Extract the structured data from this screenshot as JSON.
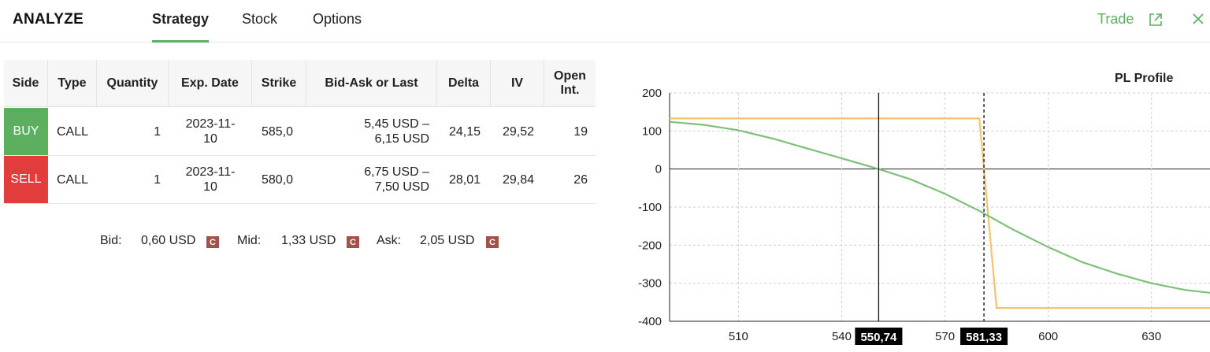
{
  "header": {
    "app_title": "ANALYZE",
    "tabs": [
      {
        "label": "Strategy",
        "active": true
      },
      {
        "label": "Stock",
        "active": false
      },
      {
        "label": "Options",
        "active": false
      }
    ],
    "trade_label": "Trade",
    "accent_color": "#5fae66"
  },
  "table": {
    "columns": [
      "Side",
      "Type",
      "Quantity",
      "Exp. Date",
      "Strike",
      "Bid-Ask or Last",
      "Delta",
      "IV",
      "Open Int."
    ],
    "rows": [
      {
        "side": "BUY",
        "type": "CALL",
        "quantity": "1",
        "exp_line1": "2023-11-",
        "exp_line2": "10",
        "strike": "585,0",
        "bidask_line1": "5,45 USD –",
        "bidask_line2": "6,15 USD",
        "delta": "24,15",
        "iv": "29,52",
        "open_int": "19",
        "color": "#5caf5f"
      },
      {
        "side": "SELL",
        "type": "CALL",
        "quantity": "1",
        "exp_line1": "2023-11-",
        "exp_line2": "10",
        "strike": "580,0",
        "bidask_line1": "6,75 USD –",
        "bidask_line2": "7,50 USD",
        "delta": "28,01",
        "iv": "29,84",
        "open_int": "26",
        "color": "#e23c3c"
      }
    ]
  },
  "summary": {
    "bid_label": "Bid:",
    "bid_value": "0,60 USD",
    "mid_label": "Mid:",
    "mid_value": "1,33 USD",
    "ask_label": "Ask:",
    "ask_value": "2,05 USD",
    "badge": "C"
  },
  "chart_data": {
    "type": "line",
    "title": "PL Profile",
    "xlabel": "",
    "ylabel": "",
    "xlim": [
      490,
      647
    ],
    "ylim": [
      -400,
      200
    ],
    "x_ticks": [
      510,
      540,
      570,
      600,
      630
    ],
    "y_ticks": [
      200,
      100,
      0,
      -100,
      -200,
      -300,
      -400
    ],
    "grid": true,
    "markers": [
      {
        "x": 550.74,
        "label": "550,74",
        "style": "solid"
      },
      {
        "x": 581.33,
        "label": "581,33",
        "style": "dashed"
      }
    ],
    "series": [
      {
        "color": "#f2c46b",
        "x": [
          490,
          580,
          581.33,
          585,
          647
        ],
        "y": [
          133,
          133,
          0,
          -365,
          -365
        ]
      },
      {
        "color": "#7fbf7a",
        "x": [
          490,
          500,
          510,
          520,
          530,
          540,
          550.74,
          560,
          570,
          580,
          590,
          600,
          610,
          620,
          630,
          640,
          647
        ],
        "y": [
          124,
          116,
          102,
          80,
          54,
          28,
          0,
          -27,
          -65,
          -110,
          -160,
          -205,
          -245,
          -275,
          -300,
          -318,
          -325
        ]
      }
    ]
  }
}
